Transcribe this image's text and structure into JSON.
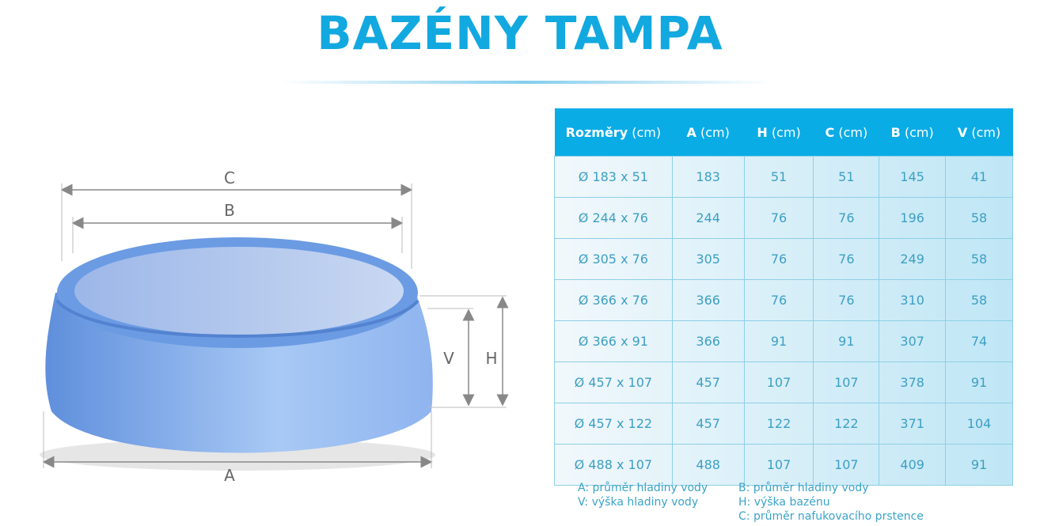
{
  "title": "BAZÉNY TAMPA",
  "diagram": {
    "labels": {
      "C": "C",
      "B": "B",
      "A": "A",
      "V": "V",
      "H": "H"
    }
  },
  "table": {
    "headers": [
      {
        "bold": "Rozměry",
        "unit": "(cm)"
      },
      {
        "bold": "A",
        "unit": "(cm)"
      },
      {
        "bold": "H",
        "unit": "(cm)"
      },
      {
        "bold": "C",
        "unit": "(cm)"
      },
      {
        "bold": "B",
        "unit": "(cm)"
      },
      {
        "bold": "V",
        "unit": "(cm)"
      }
    ],
    "rows": [
      [
        "Ø 183 x 51",
        "183",
        "51",
        "51",
        "145",
        "41"
      ],
      [
        "Ø 244 x 76",
        "244",
        "76",
        "76",
        "196",
        "58"
      ],
      [
        "Ø 305 x 76",
        "305",
        "76",
        "76",
        "249",
        "58"
      ],
      [
        "Ø 366 x 76",
        "366",
        "76",
        "76",
        "310",
        "58"
      ],
      [
        "Ø 366 x 91",
        "366",
        "91",
        "91",
        "307",
        "74"
      ],
      [
        "Ø 457 x 107",
        "457",
        "107",
        "107",
        "378",
        "91"
      ],
      [
        "Ø 457 x 122",
        "457",
        "122",
        "122",
        "371",
        "104"
      ],
      [
        "Ø 488 x 107",
        "488",
        "107",
        "107",
        "409",
        "91"
      ]
    ]
  },
  "legend": {
    "left": [
      "A: průměr hladiny vody",
      "V: výška hladiny vody"
    ],
    "right": [
      "B: průměr hladiny vody",
      "H: výška bazénu",
      "C: průměr nafukovacího prstence"
    ]
  },
  "colors": {
    "accent": "#0aace6",
    "pool": "#6f9fe6"
  }
}
